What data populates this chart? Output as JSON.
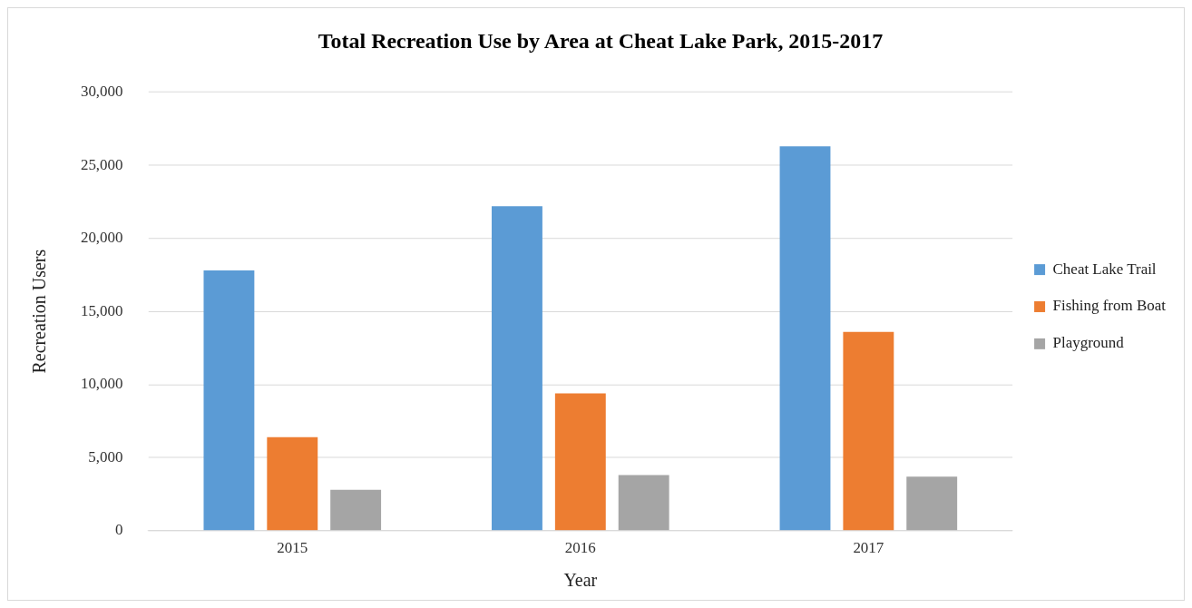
{
  "chart_data": {
    "type": "bar",
    "title": "Total Recreation Use by Area at Cheat Lake Park, 2015-2017",
    "xlabel": "Year",
    "ylabel": "Recreation Users",
    "categories": [
      "2015",
      "2016",
      "2017"
    ],
    "series": [
      {
        "name": "Cheat Lake Trail",
        "color": "#5b9bd5",
        "values": [
          17800,
          22200,
          26300
        ]
      },
      {
        "name": "Fishing from Boat",
        "color": "#ed7d31",
        "values": [
          6400,
          9400,
          13600
        ]
      },
      {
        "name": "Playground",
        "color": "#a5a5a5",
        "values": [
          2800,
          3800,
          3700
        ]
      }
    ],
    "ylim": [
      0,
      30000
    ],
    "yticks": [
      {
        "value": 0,
        "label": "0"
      },
      {
        "value": 5000,
        "label": "5,000"
      },
      {
        "value": 10000,
        "label": "10,000"
      },
      {
        "value": 15000,
        "label": "15,000"
      },
      {
        "value": 20000,
        "label": "20,000"
      },
      {
        "value": 25000,
        "label": "25,000"
      },
      {
        "value": 30000,
        "label": "30,000"
      }
    ],
    "grid": "y",
    "legend": "right"
  }
}
